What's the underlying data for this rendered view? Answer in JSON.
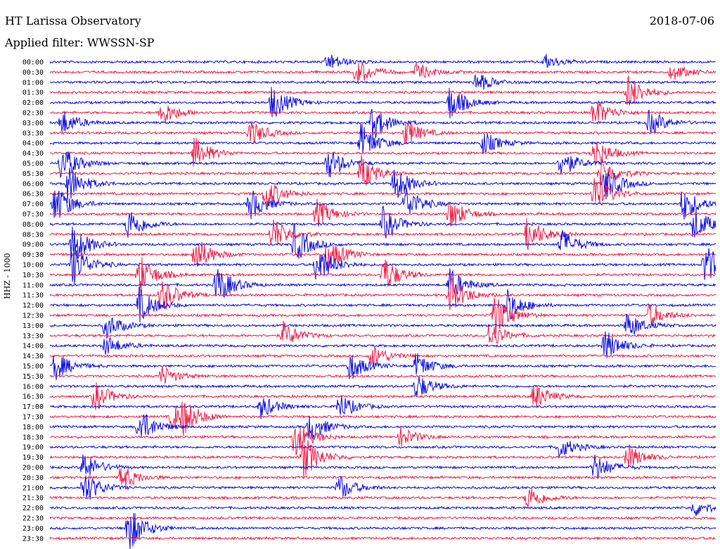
{
  "header": {
    "station": "HT Larissa Observatory",
    "date": "2018-07-06",
    "filter": "Applied filter: WWSSN-SP",
    "channel": "HHZ - 1000"
  },
  "colors": {
    "even": "#1010e0",
    "odd": "#f0204a",
    "background": "#ffffff"
  },
  "chart_data": {
    "type": "line",
    "title": "HT Larissa Observatory",
    "ylabel": "HHZ - 1000",
    "row_labels": [
      "00:00",
      "00:30",
      "01:00",
      "01:30",
      "02:00",
      "02:30",
      "03:00",
      "03:30",
      "04:00",
      "04:30",
      "05:00",
      "05:30",
      "06:00",
      "06:30",
      "07:00",
      "07:30",
      "08:00",
      "08:30",
      "09:00",
      "09:30",
      "10:00",
      "10:30",
      "11:00",
      "11:30",
      "12:00",
      "12:30",
      "13:00",
      "13:30",
      "14:00",
      "14:30",
      "15:00",
      "15:30",
      "16:00",
      "16:30",
      "17:00",
      "17:30",
      "18:00",
      "18:30",
      "19:00",
      "19:30",
      "20:00",
      "20:30",
      "21:00",
      "21:30",
      "22:00",
      "22:30",
      "23:00",
      "23:30"
    ],
    "row_minutes": 30,
    "row_colors": [
      "blue",
      "red"
    ],
    "events": [
      {
        "row": 0,
        "minute": 12.5,
        "strength": 0.6
      },
      {
        "row": 0,
        "minute": 22.3,
        "strength": 0.5
      },
      {
        "row": 1,
        "minute": 13.8,
        "strength": 0.9
      },
      {
        "row": 1,
        "minute": 16.5,
        "strength": 0.6
      },
      {
        "row": 1,
        "minute": 28.0,
        "strength": 0.6
      },
      {
        "row": 2,
        "minute": 19.2,
        "strength": 0.7
      },
      {
        "row": 3,
        "minute": 26.0,
        "strength": 1.3
      },
      {
        "row": 4,
        "minute": 10.0,
        "strength": 1.2
      },
      {
        "row": 4,
        "minute": 18.0,
        "strength": 1.2
      },
      {
        "row": 5,
        "minute": 5.0,
        "strength": 0.9
      },
      {
        "row": 5,
        "minute": 24.5,
        "strength": 1.0
      },
      {
        "row": 6,
        "minute": 0.5,
        "strength": 0.9
      },
      {
        "row": 6,
        "minute": 14.5,
        "strength": 1.2
      },
      {
        "row": 6,
        "minute": 27.0,
        "strength": 0.9
      },
      {
        "row": 7,
        "minute": 9.0,
        "strength": 0.9
      },
      {
        "row": 7,
        "minute": 16.0,
        "strength": 0.9
      },
      {
        "row": 8,
        "minute": 14.0,
        "strength": 1.3
      },
      {
        "row": 8,
        "minute": 19.5,
        "strength": 0.8
      },
      {
        "row": 9,
        "minute": 6.5,
        "strength": 1.1
      },
      {
        "row": 9,
        "minute": 24.5,
        "strength": 1.1
      },
      {
        "row": 10,
        "minute": 0.5,
        "strength": 1.3
      },
      {
        "row": 10,
        "minute": 12.5,
        "strength": 1.1
      },
      {
        "row": 10,
        "minute": 23.0,
        "strength": 1.0
      },
      {
        "row": 11,
        "minute": 14.0,
        "strength": 1.2
      },
      {
        "row": 11,
        "minute": 24.8,
        "strength": 1.2
      },
      {
        "row": 12,
        "minute": 0.8,
        "strength": 1.3
      },
      {
        "row": 12,
        "minute": 15.5,
        "strength": 1.2
      },
      {
        "row": 12,
        "minute": 25.0,
        "strength": 1.2
      },
      {
        "row": 13,
        "minute": 9.7,
        "strength": 1.1
      },
      {
        "row": 13,
        "minute": 24.5,
        "strength": 1.4
      },
      {
        "row": 14,
        "minute": 0.2,
        "strength": 1.4
      },
      {
        "row": 14,
        "minute": 9.0,
        "strength": 1.1
      },
      {
        "row": 14,
        "minute": 16.0,
        "strength": 1.2
      },
      {
        "row": 14,
        "minute": 28.5,
        "strength": 1.2
      },
      {
        "row": 15,
        "minute": 12.0,
        "strength": 1.0
      },
      {
        "row": 15,
        "minute": 18.0,
        "strength": 1.1
      },
      {
        "row": 16,
        "minute": 3.5,
        "strength": 1.2
      },
      {
        "row": 16,
        "minute": 15.0,
        "strength": 1.1
      },
      {
        "row": 16,
        "minute": 29.0,
        "strength": 1.2
      },
      {
        "row": 17,
        "minute": 10.0,
        "strength": 1.2
      },
      {
        "row": 17,
        "minute": 21.5,
        "strength": 1.2
      },
      {
        "row": 18,
        "minute": 1.0,
        "strength": 1.4
      },
      {
        "row": 18,
        "minute": 11.0,
        "strength": 1.3
      },
      {
        "row": 18,
        "minute": 23.0,
        "strength": 1.1
      },
      {
        "row": 19,
        "minute": 6.5,
        "strength": 1.3
      },
      {
        "row": 19,
        "minute": 12.5,
        "strength": 1.2
      },
      {
        "row": 20,
        "minute": 1.0,
        "strength": 1.5
      },
      {
        "row": 20,
        "minute": 12.0,
        "strength": 1.4
      },
      {
        "row": 20,
        "minute": 29.5,
        "strength": 1.4
      },
      {
        "row": 21,
        "minute": 4.0,
        "strength": 1.4
      },
      {
        "row": 21,
        "minute": 15.0,
        "strength": 1.3
      },
      {
        "row": 22,
        "minute": 7.5,
        "strength": 1.4
      },
      {
        "row": 22,
        "minute": 18.0,
        "strength": 1.1
      },
      {
        "row": 23,
        "minute": 5.0,
        "strength": 1.3
      },
      {
        "row": 23,
        "minute": 18.0,
        "strength": 1.3
      },
      {
        "row": 24,
        "minute": 4.0,
        "strength": 1.2
      },
      {
        "row": 24,
        "minute": 20.5,
        "strength": 1.3
      },
      {
        "row": 25,
        "minute": 20.0,
        "strength": 1.6
      },
      {
        "row": 25,
        "minute": 27.0,
        "strength": 0.8
      },
      {
        "row": 26,
        "minute": 2.5,
        "strength": 0.9
      },
      {
        "row": 26,
        "minute": 26.0,
        "strength": 0.9
      },
      {
        "row": 27,
        "minute": 10.5,
        "strength": 0.9
      },
      {
        "row": 27,
        "minute": 19.8,
        "strength": 0.9
      },
      {
        "row": 28,
        "minute": 25.0,
        "strength": 1.1
      },
      {
        "row": 28,
        "minute": 2.5,
        "strength": 0.7
      },
      {
        "row": 29,
        "minute": 14.5,
        "strength": 0.8
      },
      {
        "row": 30,
        "minute": 0.2,
        "strength": 1.0
      },
      {
        "row": 30,
        "minute": 13.5,
        "strength": 1.0
      },
      {
        "row": 30,
        "minute": 16.5,
        "strength": 0.9
      },
      {
        "row": 31,
        "minute": 5.0,
        "strength": 0.7
      },
      {
        "row": 32,
        "minute": 16.5,
        "strength": 0.9
      },
      {
        "row": 33,
        "minute": 2.0,
        "strength": 1.0
      },
      {
        "row": 33,
        "minute": 21.8,
        "strength": 0.9
      },
      {
        "row": 34,
        "minute": 9.5,
        "strength": 0.8
      },
      {
        "row": 34,
        "minute": 13.0,
        "strength": 0.9
      },
      {
        "row": 35,
        "minute": 5.5,
        "strength": 0.9
      },
      {
        "row": 35,
        "minute": 6.0,
        "strength": 0.9
      },
      {
        "row": 36,
        "minute": 4.0,
        "strength": 1.3
      },
      {
        "row": 36,
        "minute": 11.7,
        "strength": 1.0
      },
      {
        "row": 37,
        "minute": 11.0,
        "strength": 1.3
      },
      {
        "row": 37,
        "minute": 15.8,
        "strength": 0.7
      },
      {
        "row": 38,
        "minute": 22.9,
        "strength": 0.8
      },
      {
        "row": 39,
        "minute": 11.4,
        "strength": 1.5
      },
      {
        "row": 39,
        "minute": 26.0,
        "strength": 0.9
      },
      {
        "row": 40,
        "minute": 1.5,
        "strength": 1.0
      },
      {
        "row": 40,
        "minute": 24.5,
        "strength": 1.0
      },
      {
        "row": 41,
        "minute": 3.2,
        "strength": 0.9
      },
      {
        "row": 42,
        "minute": 1.5,
        "strength": 1.2
      },
      {
        "row": 42,
        "minute": 13.0,
        "strength": 0.9
      },
      {
        "row": 43,
        "minute": 21.5,
        "strength": 0.9
      },
      {
        "row": 44,
        "minute": 29.0,
        "strength": 0.6
      },
      {
        "row": 46,
        "minute": 3.5,
        "strength": 1.7
      }
    ]
  }
}
